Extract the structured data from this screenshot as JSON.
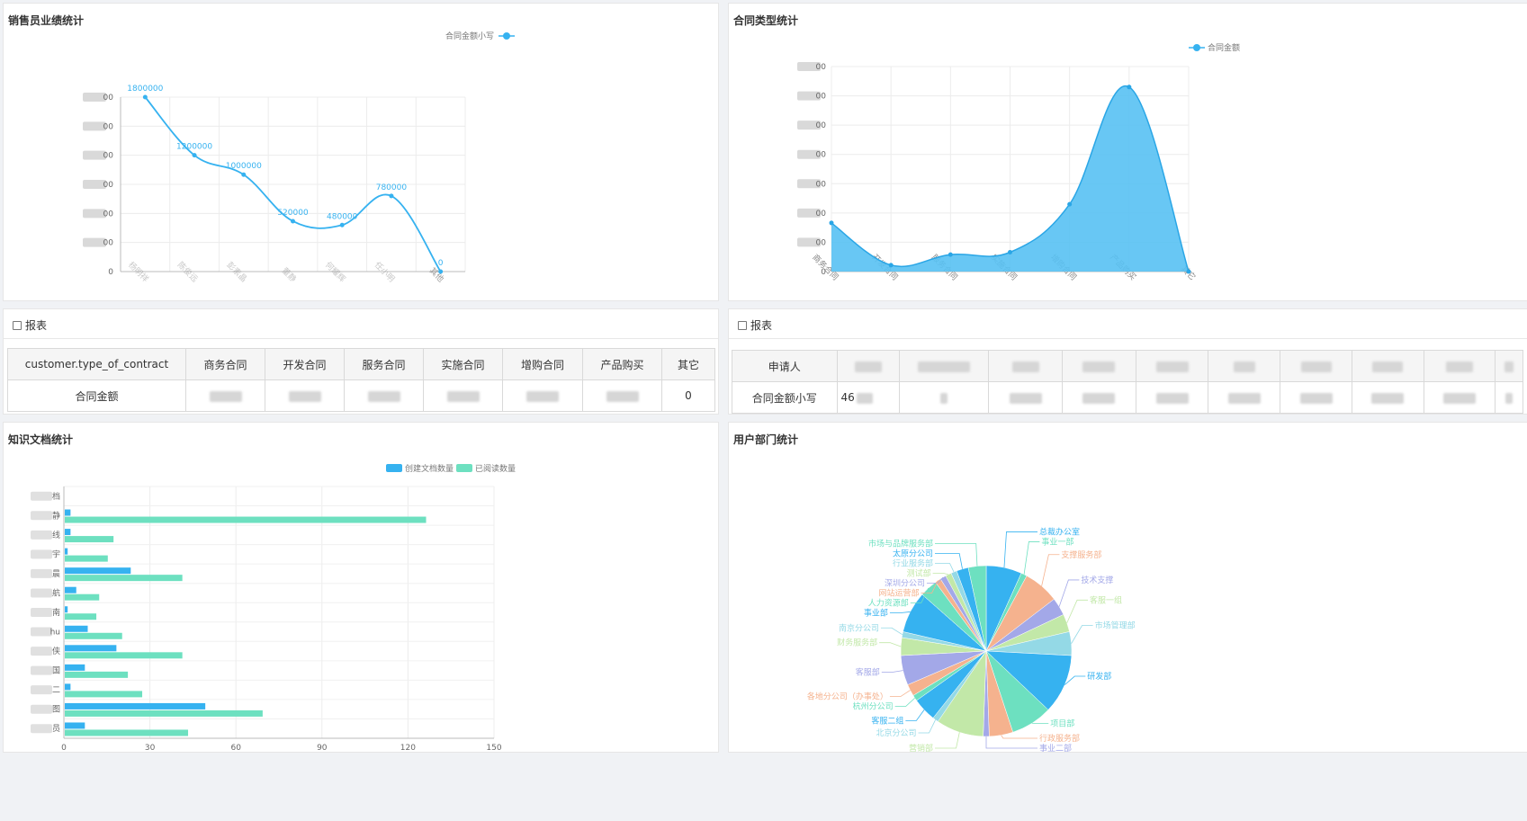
{
  "panels": {
    "sales": "销售员业绩统计",
    "contract_type": "合同类型统计",
    "report1": "报表",
    "report2": "报表",
    "knowledge": "知识文档统计",
    "dept": "用户部门统计"
  },
  "colors": {
    "blue": "#36b2f0",
    "green": "#6de0c0"
  },
  "chart_data": [
    {
      "type": "line",
      "legend": [
        "合同金额小写"
      ],
      "legend_position": "top-center",
      "categories": [
        "杨明祥",
        "陈俊远",
        "彭素晶",
        "董静",
        "何耀辉",
        "任小明",
        "其他"
      ],
      "series": [
        {
          "name": "合同金额小写",
          "values": [
            1800000,
            1200000,
            1000000,
            520000,
            480000,
            780000,
            0
          ]
        }
      ],
      "data_labels": [
        "1800000",
        "1200000",
        "1000000",
        "520000",
        "480000",
        "780000",
        "0"
      ],
      "ylim": [
        0,
        1800000
      ],
      "y_tick_count": 7,
      "smooth": true,
      "grid": true
    },
    {
      "type": "area",
      "legend": [
        "合同金额"
      ],
      "legend_position": "top-right",
      "categories": [
        "商务合同",
        "开发合同",
        "服务合同",
        "实施合同",
        "增购合同",
        "产品购买",
        "其它"
      ],
      "series": [
        {
          "name": "合同金额",
          "values": [
            830000,
            110000,
            290000,
            330000,
            1150000,
            3150000,
            0
          ]
        }
      ],
      "ylim": [
        0,
        3500000
      ],
      "y_tick_count": 8,
      "smooth": true,
      "grid": true
    },
    {
      "type": "bar",
      "orientation": "horizontal",
      "legend": [
        "创建文档数量",
        "已阅读数量"
      ],
      "legend_position": "top-center",
      "categories": [
        "",
        "",
        "",
        "",
        "",
        "",
        "",
        "",
        "",
        "",
        "",
        "",
        ""
      ],
      "category_fragments": [
        "档",
        "静",
        "线",
        "宇",
        "晨",
        "航",
        "南",
        "hu",
        "侠",
        "国",
        "二",
        "图",
        "员"
      ],
      "series": [
        {
          "name": "创建文档数量",
          "values": [
            0,
            2,
            2,
            1,
            23,
            4,
            1,
            8,
            18,
            7,
            2,
            49,
            7
          ]
        },
        {
          "name": "已阅读数量",
          "values": [
            0,
            126,
            17,
            15,
            41,
            12,
            11,
            20,
            41,
            22,
            27,
            69,
            43
          ]
        }
      ],
      "xlim": [
        0,
        150
      ],
      "x_ticks": [
        "0",
        "30",
        "60",
        "90",
        "120",
        "150"
      ],
      "grid": true
    },
    {
      "type": "pie",
      "slices": [
        {
          "label": "总裁办公室",
          "value": 6,
          "color": "#36b2f0"
        },
        {
          "label": "事业一部",
          "value": 1,
          "color": "#6de0c0"
        },
        {
          "label": "支撑服务部",
          "value": 6,
          "color": "#f5b28e"
        },
        {
          "label": "技术支撑",
          "value": 3,
          "color": "#a3a8e8"
        },
        {
          "label": "客服一组",
          "value": 3,
          "color": "#c2e8a8"
        },
        {
          "label": "市场管理部",
          "value": 4,
          "color": "#94d9e6"
        },
        {
          "label": "研发部",
          "value": 10,
          "color": "#36b2f0"
        },
        {
          "label": "项目部",
          "value": 7,
          "color": "#6de0c0"
        },
        {
          "label": "行政服务部",
          "value": 4,
          "color": "#f5b28e"
        },
        {
          "label": "事业二部",
          "value": 1,
          "color": "#a3a8e8"
        },
        {
          "label": "营销部",
          "value": 8,
          "color": "#c2e8a8"
        },
        {
          "label": "北京分公司",
          "value": 1,
          "color": "#94d9e6"
        },
        {
          "label": "客服二组",
          "value": 4,
          "color": "#36b2f0"
        },
        {
          "label": "杭州分公司",
          "value": 1,
          "color": "#6de0c0"
        },
        {
          "label": "各地分公司（办事处）",
          "value": 2,
          "color": "#f5b28e"
        },
        {
          "label": "客服部",
          "value": 5,
          "color": "#a3a8e8"
        },
        {
          "label": "财务服务部",
          "value": 3,
          "color": "#c2e8a8"
        },
        {
          "label": "南京分公司",
          "value": 1,
          "color": "#94d9e6"
        },
        {
          "label": "事业部",
          "value": 7,
          "color": "#36b2f0"
        },
        {
          "label": "人力资源部",
          "value": 3,
          "color": "#6de0c0"
        },
        {
          "label": "网站运营部",
          "value": 1,
          "color": "#f5b28e"
        },
        {
          "label": "深圳分公司",
          "value": 1,
          "color": "#a3a8e8"
        },
        {
          "label": "测试部",
          "value": 1,
          "color": "#c2e8a8"
        },
        {
          "label": "行业服务部",
          "value": 1,
          "color": "#94d9e6"
        },
        {
          "label": "太原分公司",
          "value": 2,
          "color": "#36b2f0"
        },
        {
          "label": "市场与品牌服务部",
          "value": 3,
          "color": "#6de0c0"
        }
      ]
    }
  ],
  "report1": {
    "headers": [
      "customer.type_of_contract",
      "商务合同",
      "开发合同",
      "服务合同",
      "实施合同",
      "增购合同",
      "产品购买",
      "其它"
    ],
    "row_label": "合同金额",
    "last_value": "0"
  },
  "report2": {
    "header_label": "申请人",
    "row_label": "合同金额小写",
    "first_value_fragment": "46"
  }
}
